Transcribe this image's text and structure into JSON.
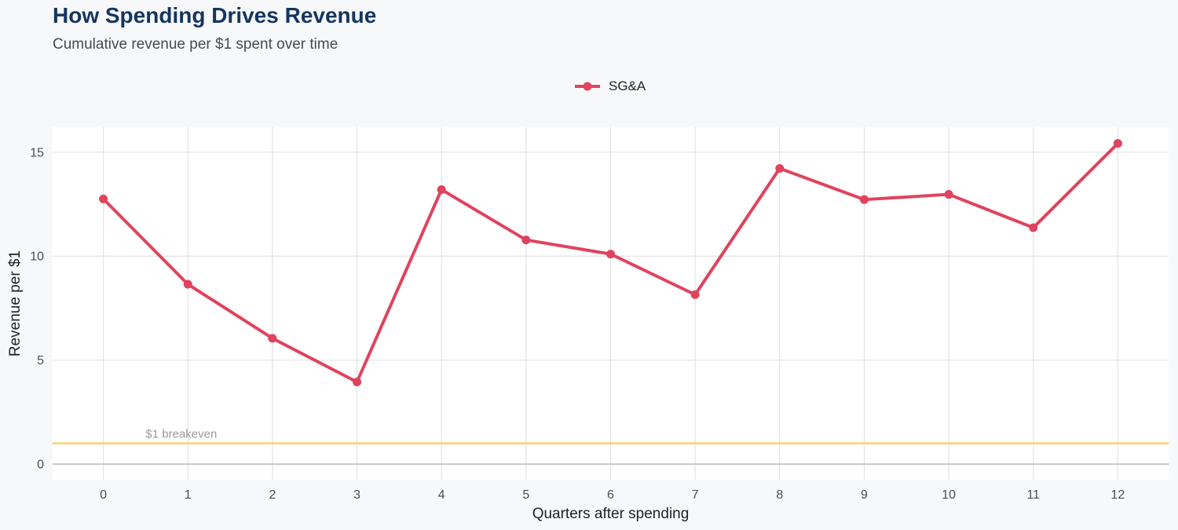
{
  "header": {
    "title": "How Spending Drives Revenue",
    "subtitle": "Cumulative revenue per $1 spent over time"
  },
  "legend": {
    "items": [
      {
        "label": "SG&A",
        "color": "#e0435e"
      }
    ]
  },
  "chart_data": {
    "type": "line",
    "title": "How Spending Drives Revenue",
    "subtitle": "Cumulative revenue per $1 spent over time",
    "xlabel": "Quarters after spending",
    "ylabel": "Revenue per $1",
    "x": [
      0,
      1,
      2,
      3,
      4,
      5,
      6,
      7,
      8,
      9,
      10,
      11,
      12
    ],
    "series": [
      {
        "name": "SG&A",
        "color": "#e0435e",
        "values": [
          12.75,
          8.65,
          6.05,
          3.95,
          13.2,
          10.78,
          10.1,
          8.15,
          14.22,
          12.72,
          12.97,
          11.37,
          15.42
        ]
      }
    ],
    "xlim": [
      -0.6,
      12.6
    ],
    "ylim": [
      -0.75,
      16.2
    ],
    "xticks": [
      0,
      1,
      2,
      3,
      4,
      5,
      6,
      7,
      8,
      9,
      10,
      11,
      12
    ],
    "yticks": [
      0,
      5,
      10,
      15
    ],
    "reference_line": {
      "y": 1,
      "label": "$1 breakeven",
      "color": "#ffd166"
    },
    "zero_line_color": "#c8c8c8",
    "grid": true,
    "legend_position": "top"
  }
}
